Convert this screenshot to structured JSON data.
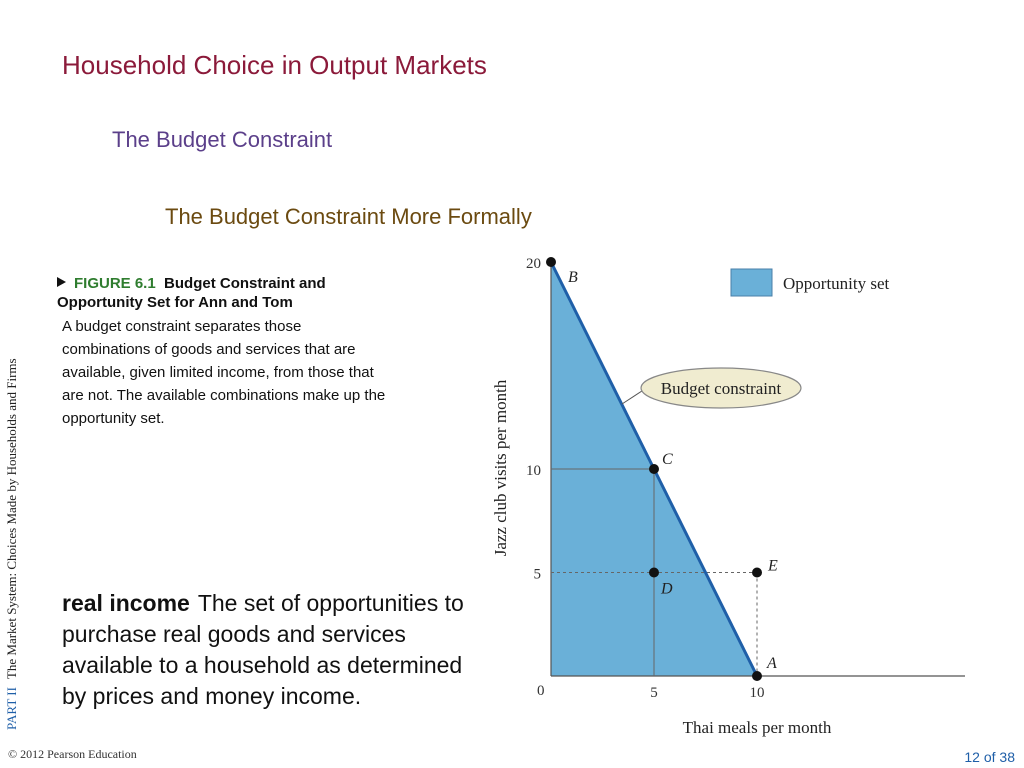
{
  "header": {
    "title": "Household Choice in Output Markets",
    "subtitle": "The Budget Constraint",
    "subsubtitle": "The Budget Constraint More Formally"
  },
  "sidebar": {
    "part": "PART II",
    "text": "The Market System: Choices Made by Households and Firms"
  },
  "figure": {
    "number": "FIGURE 6.1",
    "title": "Budget Constraint and Opportunity Set for Ann and Tom",
    "body": "A budget constraint separates those combinations of goods and services that are available, given limited income, from those that are not. The available combinations make up the opportunity set."
  },
  "definition": {
    "term": "real income",
    "text": "The set of opportunities to purchase real goods and services available to a household as determined by prices and money income."
  },
  "footer": {
    "copyright": "© 2012 Pearson Education",
    "page": "12 of 38"
  },
  "colors": {
    "title": "#8b1a3a",
    "subtitle": "#5b3f8a",
    "subsubtitle": "#6b4a10",
    "opportunity_fill": "#6ab0d8",
    "constraint_line": "#1f5fa8",
    "callout_fill": "#f0ecd0"
  },
  "chart_data": {
    "type": "line",
    "xlabel": "Thai meals per month",
    "ylabel": "Jazz club visits per month",
    "xlim": [
      0,
      20
    ],
    "ylim": [
      0,
      20
    ],
    "x_ticks": [
      "0",
      "5",
      "10"
    ],
    "y_ticks": [
      "5",
      "10",
      "20"
    ],
    "grid": false,
    "series": [
      {
        "values": [
          [
            0,
            20
          ],
          [
            10,
            0
          ]
        ]
      }
    ],
    "shaded_region": {
      "name": "Opportunity set",
      "vertices": [
        [
          0,
          0
        ],
        [
          0,
          20
        ],
        [
          10,
          0
        ]
      ]
    },
    "points": [
      {
        "label": "A",
        "x": 10,
        "y": 0
      },
      {
        "label": "B",
        "x": 0,
        "y": 20
      },
      {
        "label": "C",
        "x": 5,
        "y": 10
      },
      {
        "label": "D",
        "x": 5,
        "y": 5
      },
      {
        "label": "E",
        "x": 10,
        "y": 5
      }
    ],
    "legend": {
      "entries": [
        "Opportunity set"
      ],
      "position": "top-right"
    },
    "annotations": [
      "Budget constraint"
    ]
  }
}
